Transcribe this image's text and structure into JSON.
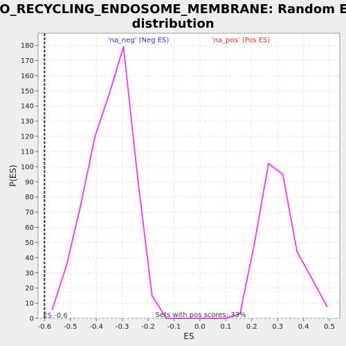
{
  "chart_data": {
    "type": "line",
    "title_line1": "GO_RECYCLING_ENDOSOME_MEMBRANE: Random ES",
    "title_line2": "distribution",
    "xlabel": "ES",
    "ylabel": "P(ES)",
    "xlim": [
      -0.625,
      0.54
    ],
    "ylim": [
      0,
      188
    ],
    "x_ticks": [
      -0.6,
      -0.5,
      -0.4,
      -0.3,
      -0.2,
      -0.1,
      0.0,
      0.1,
      0.2,
      0.3,
      0.4,
      0.5
    ],
    "x_tick_labels": [
      "-0.6",
      "-0.5",
      "-0.4",
      "-0.3",
      "-0.2",
      "-0.1",
      "0.0",
      "0.1",
      "0.2",
      "0.3",
      "0.4",
      "0.5"
    ],
    "y_ticks": [
      0,
      10,
      20,
      30,
      40,
      50,
      60,
      70,
      80,
      90,
      100,
      110,
      120,
      130,
      140,
      150,
      160,
      170,
      180
    ],
    "grid": true,
    "series": [
      {
        "color": "#ee44ee",
        "x": [
          -0.57,
          -0.515,
          -0.46,
          -0.405,
          -0.35,
          -0.295,
          -0.24,
          -0.185,
          -0.13,
          -0.075,
          0.0,
          0.05,
          0.1,
          0.155,
          0.21,
          0.265,
          0.32,
          0.375,
          0.43,
          0.49
        ],
        "y": [
          6,
          35,
          75,
          120,
          148,
          179,
          92,
          15,
          0,
          0,
          0,
          0,
          0,
          3,
          49,
          102,
          95,
          44,
          27,
          8
        ]
      }
    ],
    "vline": {
      "x": -0.6,
      "label": "ES -0.6",
      "color": "#333333"
    },
    "annotations": {
      "neg_label": "'na_neg' (Neg ES)",
      "neg_color": "#3333cc",
      "pos_label": "'na_pos' (Pos ES)",
      "pos_color": "#dd3333",
      "sets_label": "Sets with pos scores: 33%"
    }
  }
}
